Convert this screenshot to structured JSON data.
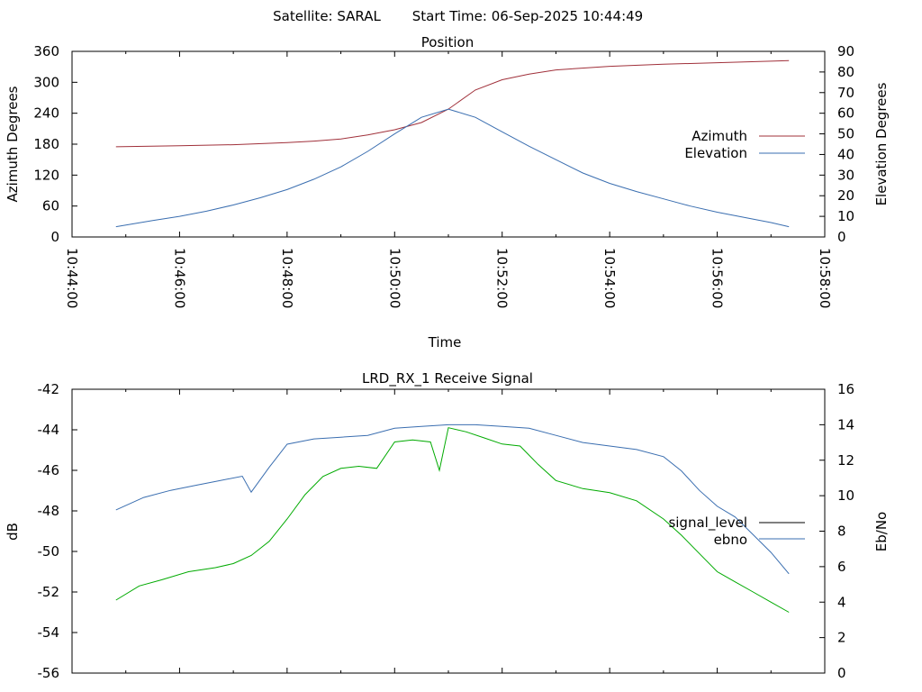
{
  "header": {
    "satellite": "Satellite: SARAL",
    "start_time": "Start Time: 06-Sep-2025 10:44:49"
  },
  "colors": {
    "azimuth": "#a0303a",
    "elevation": "#3a6eb0",
    "signal_level": "#000000",
    "ebno": "#3a6eb0",
    "signal_trace": "#00aa00"
  },
  "chart_data": [
    {
      "type": "line",
      "title": "Position",
      "xlabel": "Time",
      "ylabel": "Azimuth Degrees",
      "y2label": "Elevation Degrees",
      "xlim": [
        "10:44:00",
        "10:58:00"
      ],
      "ylim": [
        0,
        360
      ],
      "y2lim": [
        0,
        90
      ],
      "x_ticks": [
        "10:44:00",
        "10:46:00",
        "10:48:00",
        "10:50:00",
        "10:52:00",
        "10:54:00",
        "10:56:00",
        "10:58:00"
      ],
      "y_ticks": [
        0,
        60,
        120,
        180,
        240,
        300,
        360
      ],
      "y2_ticks": [
        0,
        10,
        20,
        30,
        40,
        50,
        60,
        70,
        80,
        90
      ],
      "legend_position": "right",
      "series": [
        {
          "name": "Azimuth",
          "axis": "left",
          "x": [
            "10:44:49",
            "10:46:00",
            "10:47:00",
            "10:48:00",
            "10:48:30",
            "10:49:00",
            "10:49:30",
            "10:50:00",
            "10:50:30",
            "10:51:00",
            "10:51:30",
            "10:52:00",
            "10:52:30",
            "10:53:00",
            "10:54:00",
            "10:55:00",
            "10:56:00",
            "10:57:00",
            "10:57:20"
          ],
          "values": [
            175,
            177,
            179,
            183,
            186,
            190,
            198,
            208,
            222,
            248,
            285,
            305,
            316,
            324,
            331,
            335,
            338,
            341,
            342
          ]
        },
        {
          "name": "Elevation",
          "axis": "right",
          "x": [
            "10:44:49",
            "10:45:30",
            "10:46:00",
            "10:46:30",
            "10:47:00",
            "10:47:30",
            "10:48:00",
            "10:48:30",
            "10:49:00",
            "10:49:30",
            "10:50:00",
            "10:50:30",
            "10:51:00",
            "10:51:30",
            "10:52:00",
            "10:52:30",
            "10:53:00",
            "10:53:30",
            "10:54:00",
            "10:54:30",
            "10:55:00",
            "10:55:30",
            "10:56:00",
            "10:56:30",
            "10:57:00",
            "10:57:20"
          ],
          "values": [
            5,
            8,
            10,
            12.5,
            15.5,
            19,
            23,
            28,
            34,
            41.5,
            50,
            58,
            62,
            58,
            51,
            44,
            37.5,
            31,
            26,
            22,
            18.5,
            15,
            12,
            9.5,
            7,
            5
          ]
        }
      ]
    },
    {
      "type": "line",
      "title": "LRD_RX_1 Receive Signal",
      "ylabel": "dB",
      "y2label": "Eb/No",
      "xlim": [
        "10:44:00",
        "10:58:00"
      ],
      "ylim": [
        -56,
        -42
      ],
      "y2lim": [
        0,
        16
      ],
      "y_ticks": [
        -56,
        -54,
        -52,
        -50,
        -48,
        -46,
        -44,
        -42
      ],
      "y2_ticks": [
        0,
        2,
        4,
        6,
        8,
        10,
        12,
        14,
        16
      ],
      "legend_position": "right",
      "series": [
        {
          "name": "signal_level",
          "axis": "left",
          "x": [
            "10:44:49",
            "10:45:15",
            "10:45:40",
            "10:46:10",
            "10:46:40",
            "10:47:00",
            "10:47:20",
            "10:47:40",
            "10:48:00",
            "10:48:20",
            "10:48:40",
            "10:49:00",
            "10:49:20",
            "10:49:40",
            "10:50:00",
            "10:50:20",
            "10:50:40",
            "10:50:50",
            "10:51:00",
            "10:51:20",
            "10:51:40",
            "10:52:00",
            "10:52:20",
            "10:52:40",
            "10:53:00",
            "10:53:30",
            "10:54:00",
            "10:54:30",
            "10:55:00",
            "10:55:20",
            "10:55:40",
            "10:56:00",
            "10:56:20",
            "10:56:40",
            "10:57:00",
            "10:57:20"
          ],
          "values": [
            -52.4,
            -51.7,
            -51.4,
            -51.0,
            -50.8,
            -50.6,
            -50.2,
            -49.5,
            -48.4,
            -47.2,
            -46.3,
            -45.9,
            -45.8,
            -45.9,
            -44.6,
            -44.5,
            -44.6,
            -46.0,
            -43.9,
            -44.1,
            -44.4,
            -44.7,
            -44.8,
            -45.7,
            -46.5,
            -46.9,
            -47.1,
            -47.5,
            -48.4,
            -49.2,
            -50.1,
            -51.0,
            -51.5,
            -52.0,
            -52.5,
            -53.0
          ]
        },
        {
          "name": "ebno",
          "axis": "right",
          "x": [
            "10:44:49",
            "10:45:20",
            "10:45:50",
            "10:46:20",
            "10:46:40",
            "10:47:10",
            "10:47:20",
            "10:47:40",
            "10:48:00",
            "10:48:30",
            "10:49:00",
            "10:49:30",
            "10:50:00",
            "10:50:30",
            "10:51:00",
            "10:51:30",
            "10:52:00",
            "10:52:30",
            "10:53:00",
            "10:53:30",
            "10:54:00",
            "10:54:30",
            "10:55:00",
            "10:55:20",
            "10:55:40",
            "10:56:00",
            "10:56:20",
            "10:56:40",
            "10:57:00",
            "10:57:20"
          ],
          "values": [
            9.2,
            9.9,
            10.3,
            10.6,
            10.8,
            11.1,
            10.2,
            11.6,
            12.9,
            13.2,
            13.3,
            13.4,
            13.8,
            13.9,
            14.0,
            14.0,
            13.9,
            13.8,
            13.4,
            13.0,
            12.8,
            12.6,
            12.2,
            11.4,
            10.3,
            9.4,
            8.8,
            7.8,
            6.8,
            5.6
          ]
        }
      ]
    }
  ]
}
